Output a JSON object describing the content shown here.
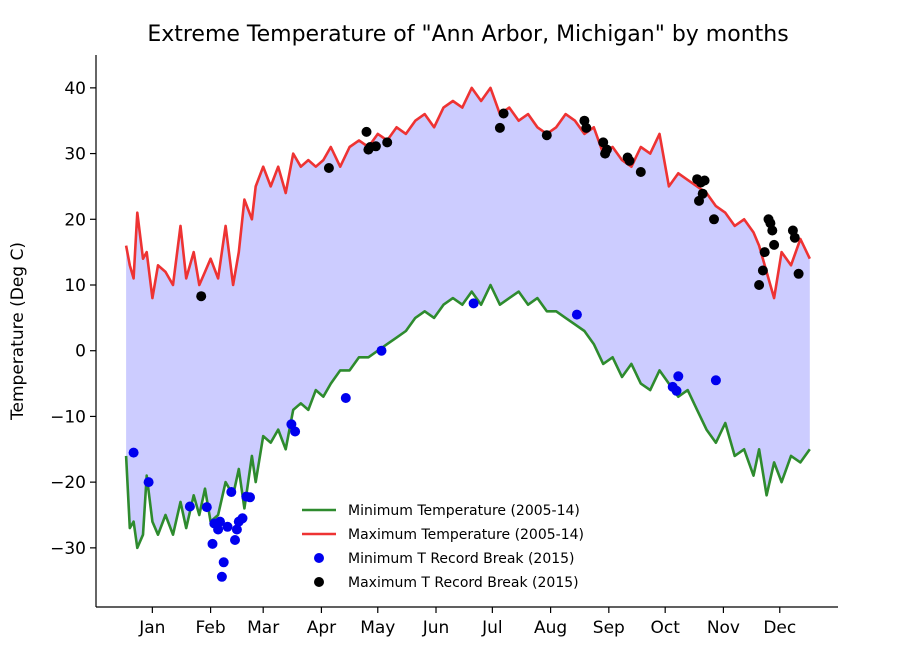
{
  "chart_data": {
    "type": "line",
    "title": "Extreme Temperature of \"Ann Arbor, Michigan\" by months",
    "xlabel": "",
    "ylabel": "Temperature (Deg C)",
    "xlim": [
      -15,
      380
    ],
    "ylim": [
      -39,
      45
    ],
    "yticks": [
      40,
      30,
      20,
      10,
      0,
      -10,
      -20,
      -30
    ],
    "month_ticks": [
      {
        "label": "Jan",
        "day": 15
      },
      {
        "label": "Feb",
        "day": 46
      },
      {
        "label": "Mar",
        "day": 74
      },
      {
        "label": "Apr",
        "day": 105
      },
      {
        "label": "May",
        "day": 135
      },
      {
        "label": "Jun",
        "day": 166
      },
      {
        "label": "Jul",
        "day": 196
      },
      {
        "label": "Aug",
        "day": 227
      },
      {
        "label": "Sep",
        "day": 258
      },
      {
        "label": "Oct",
        "day": 288
      },
      {
        "label": "Nov",
        "day": 319
      },
      {
        "label": "Dec",
        "day": 349
      }
    ],
    "fill_color": "#ccccff",
    "legend_position": "lower center",
    "series": [
      {
        "name": "Minimum Temperature (2005-14)",
        "kind": "line",
        "color": "#2e8b2e",
        "x": [
          1,
          3,
          5,
          7,
          10,
          12,
          15,
          18,
          22,
          26,
          30,
          33,
          37,
          40,
          43,
          46,
          50,
          54,
          58,
          61,
          64,
          68,
          70,
          74,
          78,
          82,
          86,
          90,
          94,
          98,
          102,
          106,
          110,
          115,
          120,
          125,
          130,
          135,
          140,
          145,
          150,
          155,
          160,
          165,
          170,
          175,
          180,
          185,
          190,
          195,
          200,
          205,
          210,
          215,
          220,
          225,
          230,
          235,
          240,
          245,
          250,
          255,
          260,
          265,
          270,
          275,
          280,
          285,
          290,
          295,
          300,
          305,
          310,
          315,
          320,
          325,
          330,
          335,
          338,
          342,
          346,
          350,
          355,
          360,
          365
        ],
        "values": [
          -16,
          -27,
          -26,
          -30,
          -28,
          -19,
          -26,
          -28,
          -25,
          -28,
          -23,
          -27,
          -22,
          -25,
          -21,
          -26,
          -25,
          -20,
          -22,
          -18,
          -24,
          -16,
          -20,
          -13,
          -14,
          -12,
          -15,
          -9,
          -8,
          -9,
          -6,
          -7,
          -5,
          -3,
          -3,
          -1,
          -1,
          0,
          1,
          2,
          3,
          5,
          6,
          5,
          7,
          8,
          7,
          9,
          7,
          10,
          7,
          8,
          9,
          7,
          8,
          6,
          6,
          5,
          4,
          3,
          1,
          -2,
          -1,
          -4,
          -2,
          -5,
          -6,
          -3,
          -5,
          -7,
          -6,
          -9,
          -12,
          -14,
          -11,
          -16,
          -15,
          -19,
          -15,
          -22,
          -17,
          -20,
          -16,
          -17,
          -15
        ]
      },
      {
        "name": "Maximum Temperature (2005-14)",
        "kind": "line",
        "color": "#ee3333",
        "x": [
          1,
          3,
          5,
          7,
          10,
          12,
          15,
          18,
          22,
          26,
          30,
          33,
          37,
          40,
          43,
          46,
          50,
          54,
          58,
          61,
          64,
          68,
          70,
          74,
          78,
          82,
          86,
          90,
          94,
          98,
          102,
          106,
          110,
          115,
          120,
          125,
          130,
          135,
          140,
          145,
          150,
          155,
          160,
          165,
          170,
          175,
          180,
          185,
          190,
          195,
          200,
          205,
          210,
          215,
          220,
          225,
          230,
          235,
          240,
          245,
          250,
          255,
          260,
          265,
          270,
          275,
          280,
          285,
          290,
          295,
          300,
          305,
          310,
          315,
          320,
          325,
          330,
          335,
          338,
          342,
          346,
          350,
          355,
          360,
          365
        ],
        "values": [
          16,
          13,
          11,
          21,
          14,
          15,
          8,
          13,
          12,
          10,
          19,
          11,
          15,
          10,
          12,
          14,
          11,
          19,
          10,
          15,
          23,
          20,
          25,
          28,
          25,
          28,
          24,
          30,
          28,
          29,
          28,
          29,
          31,
          28,
          31,
          32,
          31,
          33,
          32,
          34,
          33,
          35,
          36,
          34,
          37,
          38,
          37,
          40,
          38,
          40,
          36,
          37,
          35,
          36,
          34,
          33,
          34,
          36,
          35,
          33,
          34,
          30,
          31,
          29,
          28,
          31,
          30,
          33,
          25,
          27,
          26,
          25,
          24,
          22,
          21,
          19,
          20,
          18,
          16,
          12,
          8,
          15,
          13,
          17,
          14
        ]
      },
      {
        "name": "Minimum T Record Break (2015)",
        "kind": "scatter",
        "color": "#0000ee",
        "x": [
          5,
          13,
          35,
          44,
          47,
          48,
          50,
          51,
          52,
          53,
          55,
          57,
          59,
          60,
          61,
          63,
          65,
          67,
          89,
          91,
          118,
          137,
          186,
          241,
          292,
          294,
          295,
          315
        ],
        "values": [
          -15.5,
          -20,
          -23.7,
          -23.8,
          -29.4,
          -26.3,
          -27.2,
          -26.0,
          -34.4,
          -32.2,
          -26.8,
          -21.5,
          -28.8,
          -27.2,
          -26.0,
          -25.5,
          -22.2,
          -22.3,
          -11.2,
          -12.3,
          -7.2,
          0,
          7.2,
          5.5,
          -5.5,
          -6.1,
          -3.9,
          -4.5
        ]
      },
      {
        "name": "Maximum T Record Break (2015)",
        "kind": "scatter",
        "color": "#000000",
        "x": [
          41,
          109,
          129,
          130,
          131,
          134,
          140,
          200,
          202,
          225,
          245,
          246,
          255,
          256,
          257,
          268,
          269,
          275,
          305,
          306,
          307,
          308,
          309,
          314,
          338,
          340,
          341,
          343,
          344,
          345,
          346,
          356,
          357,
          359
        ],
        "values": [
          8.3,
          27.8,
          33.3,
          30.6,
          31.0,
          31.1,
          31.7,
          33.9,
          36.1,
          32.8,
          35.0,
          33.9,
          31.7,
          30.0,
          30.6,
          29.4,
          28.9,
          27.2,
          26.1,
          22.8,
          25.6,
          23.9,
          25.9,
          20.0,
          10.0,
          12.2,
          15.0,
          20.0,
          19.4,
          18.3,
          16.1,
          18.3,
          17.2,
          11.7
        ]
      }
    ]
  }
}
